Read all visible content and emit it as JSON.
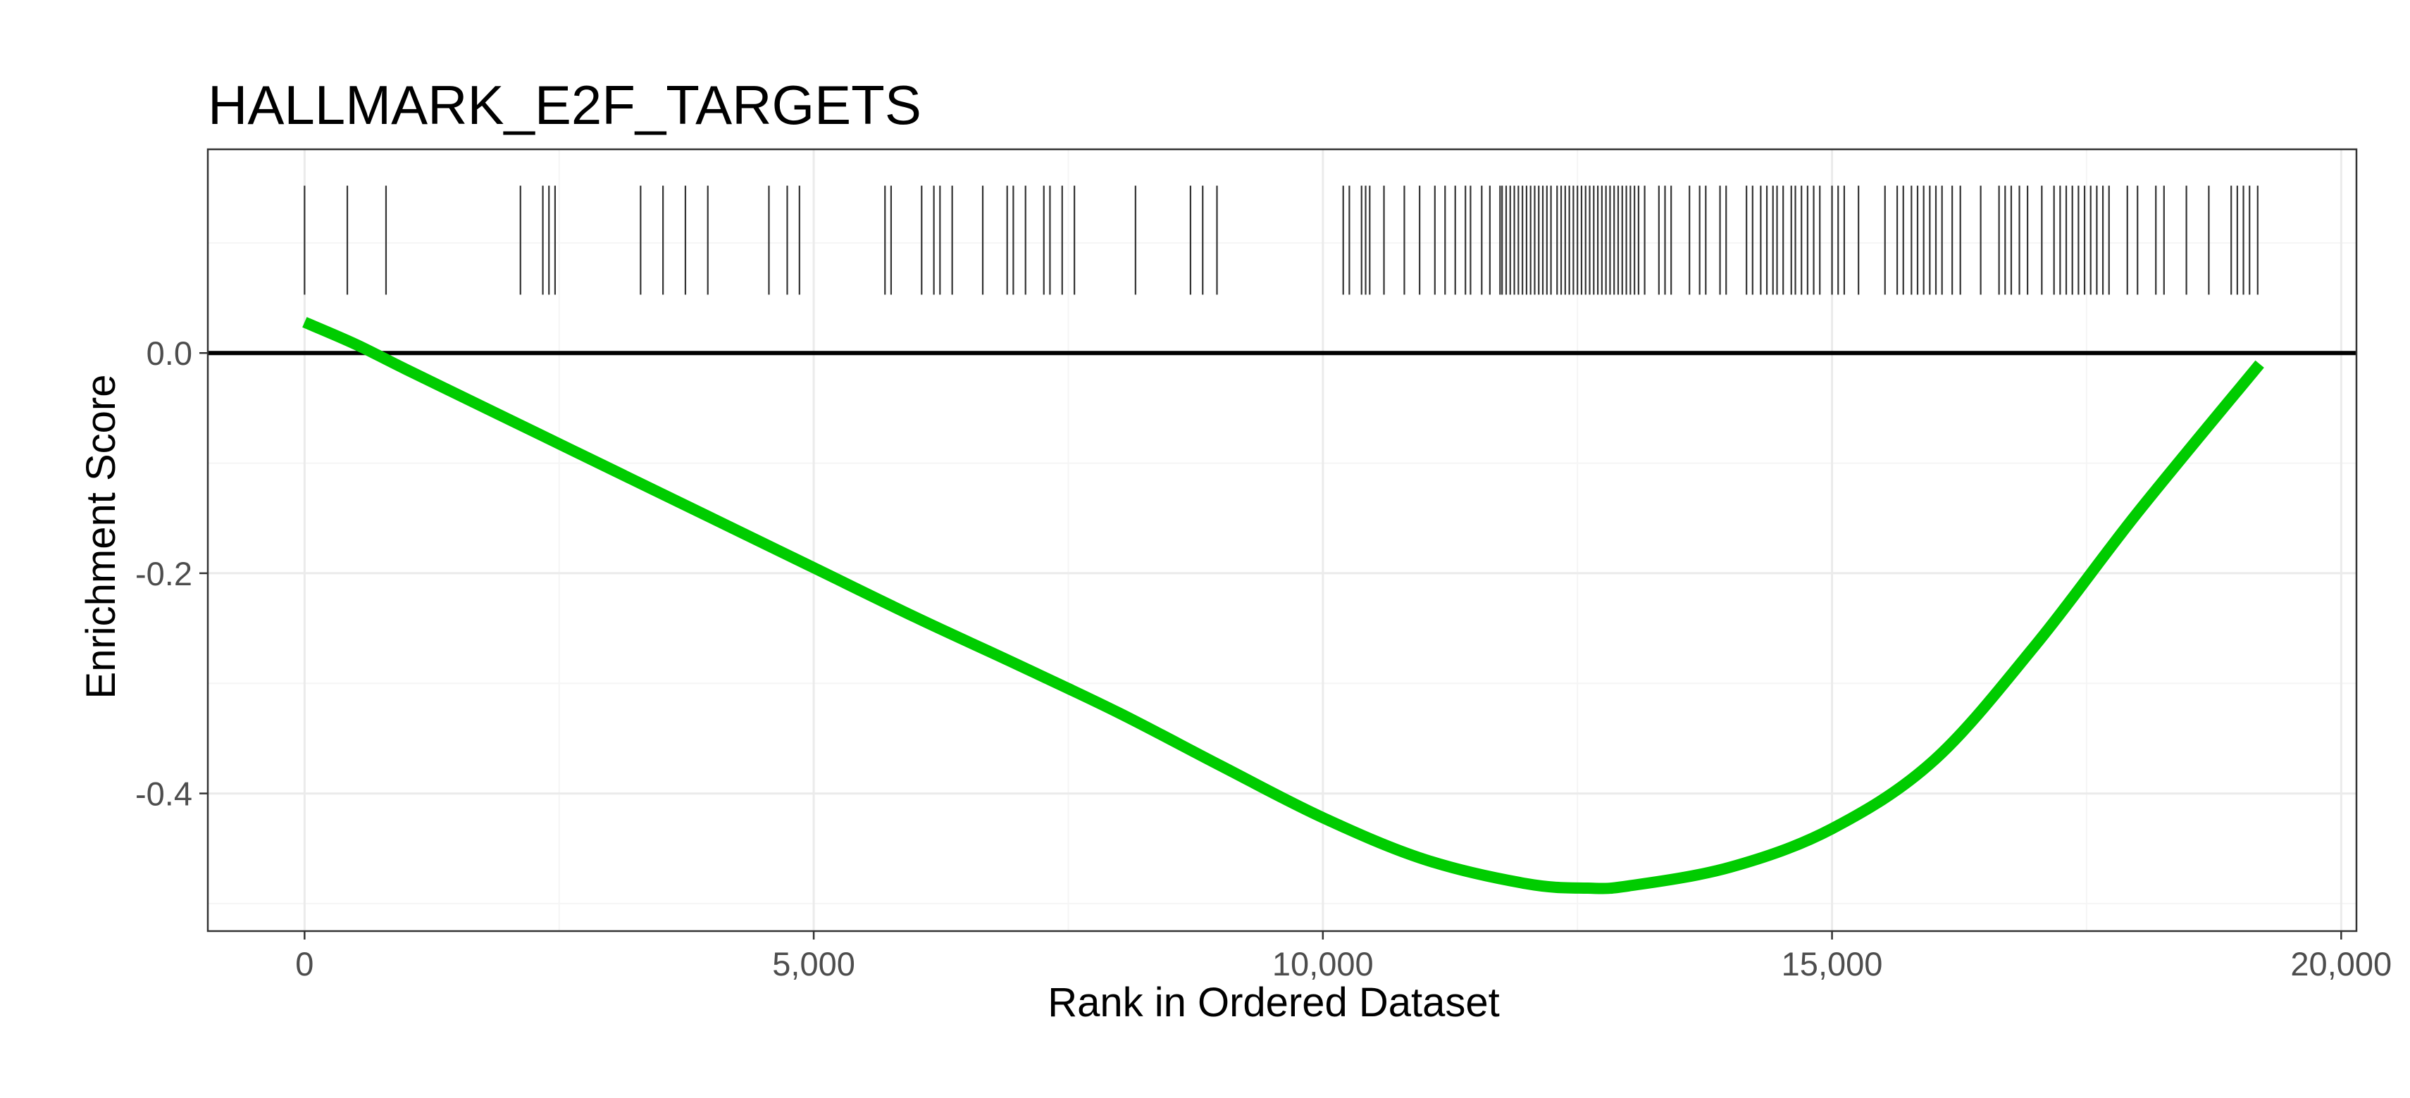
{
  "chart_data": {
    "type": "line",
    "title": "HALLMARK_E2F_TARGETS",
    "xlabel": "Rank in Ordered Dataset",
    "ylabel": "Enrichment Score",
    "xlim": [
      -950,
      20150
    ],
    "ylim": [
      -0.525,
      0.185
    ],
    "x_ticks": [
      0,
      5000,
      10000,
      15000,
      20000
    ],
    "x_tick_labels": [
      "0",
      "5,000",
      "10,000",
      "15,000",
      "20,000"
    ],
    "y_ticks": [
      -0.4,
      -0.2,
      0.0
    ],
    "y_tick_labels": [
      "-0.4",
      "-0.2",
      "0.0"
    ],
    "grid": true,
    "reference_line_y": 0.0,
    "series": [
      {
        "color": "#00cc00",
        "x": [
          0,
          500,
          1000,
          2000,
          3000,
          4000,
          5000,
          6000,
          7000,
          8000,
          9000,
          10000,
          11000,
          12000,
          12600,
          13000,
          14000,
          15000,
          16000,
          17000,
          18000,
          19200
        ],
        "y": [
          0.028,
          0.008,
          -0.015,
          -0.06,
          -0.105,
          -0.15,
          -0.195,
          -0.24,
          -0.283,
          -0.327,
          -0.375,
          -0.422,
          -0.46,
          -0.482,
          -0.486,
          -0.484,
          -0.467,
          -0.432,
          -0.37,
          -0.265,
          -0.145,
          -0.01
        ]
      }
    ],
    "hits": [
      0,
      420,
      800,
      2120,
      2340,
      2400,
      2460,
      3300,
      3520,
      3740,
      3960,
      4560,
      4740,
      4860,
      5700,
      5760,
      6060,
      6180,
      6240,
      6360,
      6660,
      6900,
      6960,
      7080,
      7260,
      7320,
      7440,
      7560,
      8160,
      8700,
      8820,
      8960,
      10200,
      10260,
      10380,
      10420,
      10460,
      10600,
      10800,
      10950,
      11100,
      11200,
      11300,
      11400,
      11450,
      11560,
      11640,
      11740,
      11760,
      11800,
      11840,
      11880,
      11920,
      11960,
      12000,
      12040,
      12080,
      12120,
      12160,
      12200,
      12240,
      12300,
      12340,
      12380,
      12420,
      12460,
      12500,
      12540,
      12580,
      12620,
      12660,
      12700,
      12740,
      12780,
      12820,
      12860,
      12900,
      12940,
      12980,
      13020,
      13060,
      13100,
      13160,
      13300,
      13360,
      13420,
      13600,
      13700,
      13760,
      13900,
      13960,
      14160,
      14220,
      14300,
      14360,
      14420,
      14460,
      14520,
      14600,
      14640,
      14700,
      14760,
      14820,
      14880,
      15000,
      15060,
      15120,
      15260,
      15520,
      15640,
      15700,
      15780,
      15840,
      15900,
      15960,
      16020,
      16080,
      16180,
      16260,
      16460,
      16640,
      16700,
      16760,
      16840,
      16920,
      17060,
      17180,
      17240,
      17300,
      17360,
      17420,
      17480,
      17540,
      17600,
      17660,
      17720,
      17900,
      18000,
      18180,
      18260,
      18480,
      18700,
      18920,
      18980,
      19040,
      19100,
      19180
    ],
    "colors": {
      "line": "#00cc00",
      "hit": "#333333",
      "zero_line": "#000000",
      "grid_major": "#ebebeb",
      "grid_minor": "#f5f5f5",
      "panel_border": "#333333"
    }
  }
}
